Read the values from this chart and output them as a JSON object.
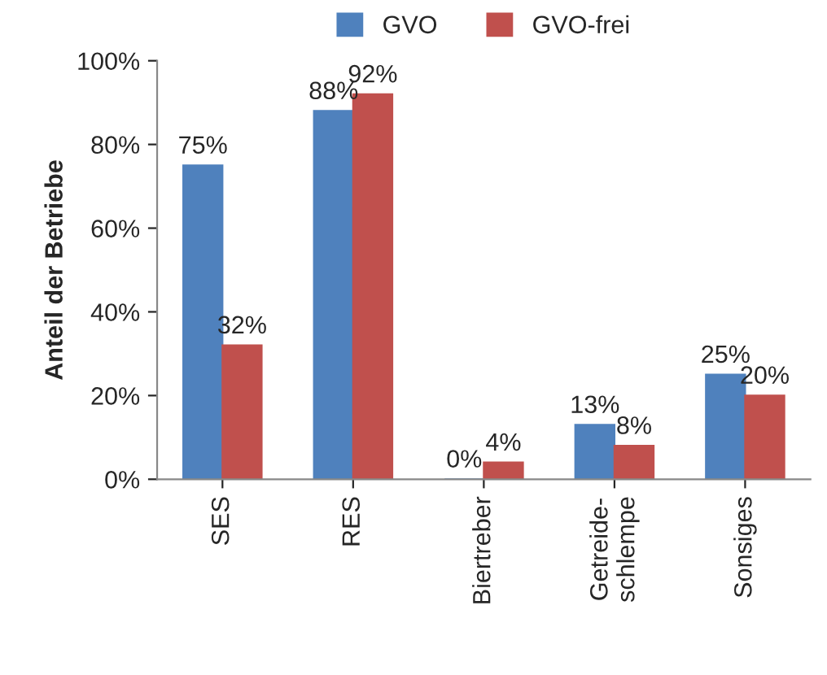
{
  "chart_data": {
    "type": "bar",
    "ylabel": "Anteil der Betriebe",
    "categories": [
      "SES",
      "RES",
      "Biertreber",
      "Getreide-\nschlempe",
      "Sonsiges"
    ],
    "series": [
      {
        "name": "GVO",
        "color": "#4f81bd",
        "values": [
          75,
          88,
          0,
          13,
          25
        ],
        "value_labels": [
          "75%",
          "88%",
          "0%",
          "13%",
          "25%"
        ]
      },
      {
        "name": "GVO-frei",
        "color": "#c0504d",
        "values": [
          32,
          92,
          4,
          8,
          20
        ],
        "value_labels": [
          "32%",
          "92%",
          "4%",
          "8%",
          "20%"
        ]
      }
    ],
    "ylim": [
      0,
      100
    ],
    "yticks": [
      {
        "value": 0,
        "label": "0%"
      },
      {
        "value": 20,
        "label": "20%"
      },
      {
        "value": 40,
        "label": "40%"
      },
      {
        "value": 60,
        "label": "60%"
      },
      {
        "value": 80,
        "label": "80%"
      },
      {
        "value": 100,
        "label": "100%"
      }
    ],
    "grid": false,
    "legend": "top"
  }
}
